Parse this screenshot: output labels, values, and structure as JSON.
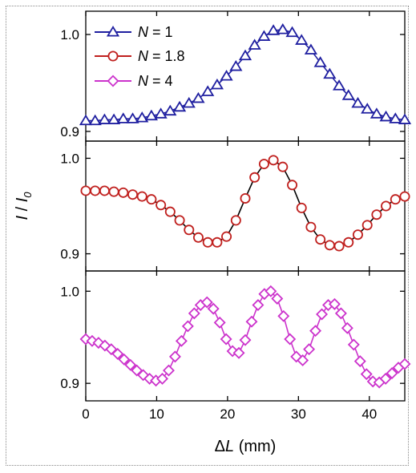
{
  "chart_data": {
    "type": "line",
    "shared_x_axis": {
      "label": "ΔL (mm)",
      "label_prefix": "Δ",
      "label_var": "L",
      "label_unit": " (mm)",
      "xlim": [
        0,
        45
      ],
      "ticks": [
        0,
        10,
        20,
        30,
        40
      ]
    },
    "ylabel": "I / I0",
    "ylabel_parts": {
      "var": "I",
      "sep": " / ",
      "var2": "I",
      "sub": "0"
    },
    "legend": {
      "placement": "top-left",
      "entries": [
        "N = 1",
        "N = 1.8",
        "N = 4"
      ]
    },
    "panels": [
      {
        "series_name": "N = 1",
        "legend_var": "N",
        "legend_rest": " = 1",
        "color": "#1f1fa0",
        "marker": "triangle",
        "ylim": [
          0.89,
          1.024
        ],
        "yticks": [
          "0.9",
          "1.0"
        ],
        "ytick_values": [
          0.9,
          1.0
        ],
        "x": [
          0,
          1.32,
          2.65,
          3.97,
          5.29,
          6.62,
          7.94,
          9.26,
          10.59,
          11.91,
          13.24,
          14.56,
          15.88,
          17.21,
          18.53,
          19.85,
          21.18,
          22.5,
          23.82,
          25.15,
          26.47,
          27.79,
          29.12,
          30.44,
          31.76,
          33.09,
          34.41,
          35.74,
          37.06,
          38.38,
          39.71,
          41.03,
          42.35,
          43.68,
          45
        ],
        "y": [
          0.911,
          0.911,
          0.912,
          0.912,
          0.913,
          0.913,
          0.914,
          0.916,
          0.918,
          0.921,
          0.925,
          0.929,
          0.934,
          0.941,
          0.948,
          0.957,
          0.967,
          0.978,
          0.989,
          0.998,
          1.004,
          1.005,
          1.002,
          0.994,
          0.984,
          0.971,
          0.959,
          0.947,
          0.937,
          0.929,
          0.923,
          0.918,
          0.915,
          0.913,
          0.912
        ]
      },
      {
        "series_name": "N = 1.8",
        "legend_var": "N",
        "legend_rest": " = 1.8",
        "color": "#c0201e",
        "marker": "circle",
        "ylim": [
          0.882,
          1.018
        ],
        "yticks": [
          "0.9",
          "1.0"
        ],
        "ytick_values": [
          0.9,
          1.0
        ],
        "x": [
          0,
          1.32,
          2.65,
          3.97,
          5.29,
          6.62,
          7.94,
          9.26,
          10.59,
          11.91,
          13.24,
          14.56,
          15.88,
          17.21,
          18.53,
          19.85,
          21.18,
          22.5,
          23.82,
          25.15,
          26.47,
          27.79,
          29.12,
          30.44,
          31.76,
          33.09,
          34.41,
          35.74,
          37.06,
          38.38,
          39.71,
          41.03,
          42.35,
          43.68,
          45
        ],
        "y": [
          0.966,
          0.966,
          0.966,
          0.965,
          0.964,
          0.962,
          0.96,
          0.957,
          0.951,
          0.944,
          0.935,
          0.925,
          0.917,
          0.912,
          0.912,
          0.918,
          0.935,
          0.958,
          0.98,
          0.994,
          0.998,
          0.991,
          0.972,
          0.948,
          0.928,
          0.915,
          0.909,
          0.908,
          0.912,
          0.92,
          0.93,
          0.941,
          0.95,
          0.957,
          0.96
        ]
      },
      {
        "series_name": "N = 4",
        "legend_var": "N",
        "legend_rest": " = 4",
        "color": "#cc33cc",
        "marker": "diamond",
        "ylim": [
          0.881,
          1.022
        ],
        "yticks": [
          "0.9",
          "1.0"
        ],
        "ytick_values": [
          0.9,
          1.0
        ],
        "x": [
          0,
          0.9,
          1.8,
          2.7,
          3.6,
          4.5,
          5.4,
          6.3,
          7.2,
          8.1,
          9.0,
          9.9,
          10.8,
          11.7,
          12.6,
          13.5,
          14.4,
          15.3,
          16.2,
          17.1,
          18.0,
          18.9,
          19.8,
          20.7,
          21.6,
          22.5,
          23.4,
          24.3,
          25.2,
          26.1,
          27.0,
          27.9,
          28.8,
          29.7,
          30.6,
          31.5,
          32.4,
          33.3,
          34.2,
          35.1,
          36.0,
          36.9,
          37.8,
          38.7,
          39.6,
          40.5,
          41.4,
          42.3,
          43.2,
          44.1,
          45
        ],
        "y": [
          0.948,
          0.946,
          0.944,
          0.941,
          0.937,
          0.932,
          0.926,
          0.92,
          0.914,
          0.909,
          0.905,
          0.903,
          0.905,
          0.914,
          0.929,
          0.946,
          0.962,
          0.976,
          0.985,
          0.988,
          0.981,
          0.966,
          0.948,
          0.935,
          0.933,
          0.947,
          0.967,
          0.985,
          0.997,
          1.0,
          0.992,
          0.973,
          0.948,
          0.929,
          0.925,
          0.937,
          0.957,
          0.975,
          0.985,
          0.986,
          0.976,
          0.96,
          0.942,
          0.924,
          0.91,
          0.902,
          0.901,
          0.905,
          0.911,
          0.917,
          0.921
        ]
      }
    ]
  }
}
